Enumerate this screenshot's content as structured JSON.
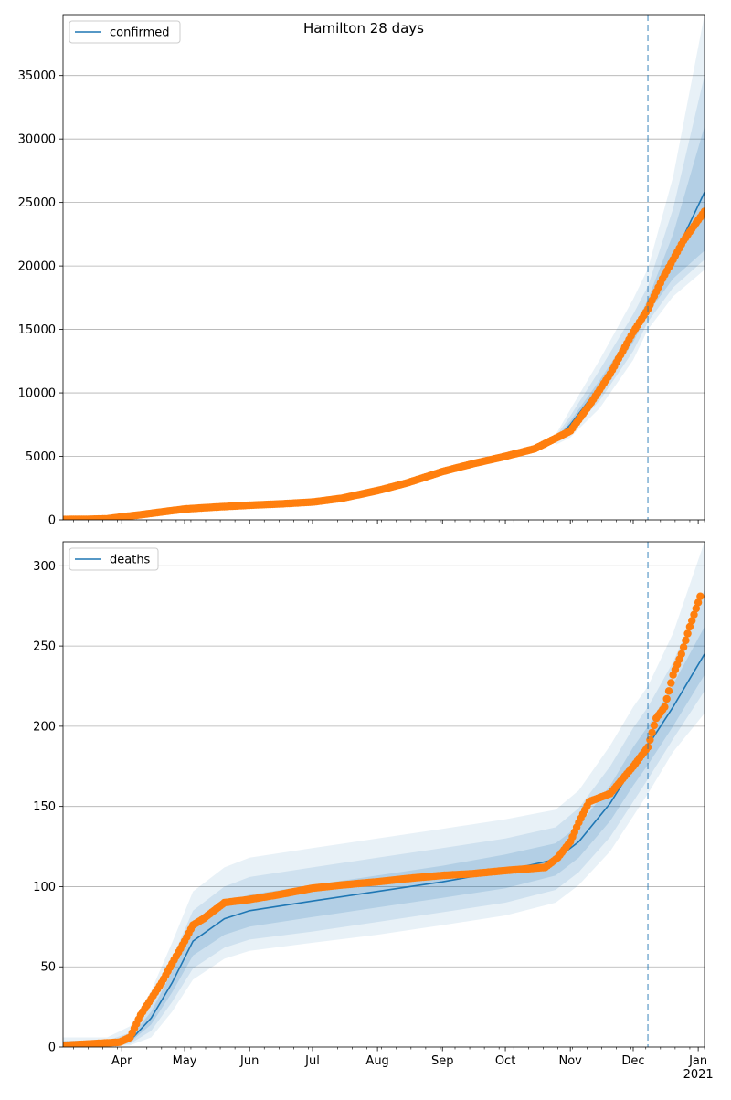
{
  "title": "Hamilton 28 days",
  "chart_data": [
    {
      "type": "line",
      "name": "confirmed",
      "legend": "confirmed",
      "legend_position": "top-left",
      "grid": "horizontal",
      "x_ticks": [
        "Apr",
        "May",
        "Jun",
        "Jul",
        "Aug",
        "Sep",
        "Oct",
        "Nov",
        "Dec",
        "Jan"
      ],
      "x_year_label": "2021",
      "y_ticks": [
        "0",
        "5000",
        "10000",
        "15000",
        "20000",
        "25000",
        "30000",
        "35000"
      ],
      "xlim": [
        "2020-03-04",
        "2021-01-04"
      ],
      "ylim": [
        0,
        39800
      ],
      "forecast_start": "2020-12-08",
      "model_line": {
        "x": [
          "2020-03-04",
          "2020-03-25",
          "2020-04-15",
          "2020-05-01",
          "2020-06-01",
          "2020-07-01",
          "2020-08-01",
          "2020-09-01",
          "2020-10-01",
          "2020-10-25",
          "2020-11-01",
          "2020-11-15",
          "2020-12-01",
          "2020-12-08",
          "2020-12-20",
          "2021-01-04"
        ],
        "y": [
          30,
          40,
          300,
          800,
          1200,
          1500,
          2400,
          4000,
          5100,
          6300,
          7500,
          10500,
          14500,
          16800,
          20600,
          25800
        ]
      },
      "bands": [
        {
          "x": [
            "2020-10-25",
            "2020-11-01",
            "2020-11-15",
            "2020-12-01",
            "2020-12-08",
            "2020-12-20",
            "2021-01-04"
          ],
          "lower": [
            6200,
            7200,
            10000,
            14000,
            16300,
            19000,
            21200
          ],
          "upper": [
            6400,
            7800,
            11000,
            15000,
            17400,
            22500,
            31000
          ]
        },
        {
          "x": [
            "2020-10-25",
            "2020-11-01",
            "2020-11-15",
            "2020-12-01",
            "2020-12-08",
            "2020-12-20",
            "2021-01-04"
          ],
          "lower": [
            6050,
            6900,
            9400,
            13300,
            15600,
            18300,
            20500
          ],
          "upper": [
            6550,
            8200,
            11800,
            16200,
            18400,
            24500,
            35000
          ]
        },
        {
          "x": [
            "2020-10-25",
            "2020-11-01",
            "2020-11-15",
            "2020-12-01",
            "2020-12-08",
            "2020-12-20",
            "2021-01-04"
          ],
          "lower": [
            5900,
            6500,
            8800,
            12600,
            15000,
            17600,
            19700
          ],
          "upper": [
            6700,
            8700,
            12600,
            17400,
            19800,
            27000,
            39800
          ]
        }
      ],
      "observed": {
        "x": [
          "2020-03-04",
          "2020-03-15",
          "2020-03-25",
          "2020-04-01",
          "2020-04-10",
          "2020-04-20",
          "2020-05-01",
          "2020-05-15",
          "2020-06-01",
          "2020-06-15",
          "2020-07-01",
          "2020-07-15",
          "2020-08-01",
          "2020-08-15",
          "2020-09-01",
          "2020-09-15",
          "2020-10-01",
          "2020-10-15",
          "2020-11-01",
          "2020-11-10",
          "2020-11-20",
          "2020-12-01",
          "2020-12-08",
          "2020-12-15",
          "2020-12-25",
          "2021-01-04"
        ],
        "y": [
          30,
          40,
          80,
          230,
          400,
          620,
          850,
          1000,
          1150,
          1250,
          1400,
          1700,
          2300,
          2900,
          3800,
          4400,
          5000,
          5600,
          7000,
          9000,
          11500,
          14800,
          16600,
          19000,
          22000,
          24300
        ]
      }
    },
    {
      "type": "line",
      "name": "deaths",
      "legend": "deaths",
      "legend_position": "top-left",
      "grid": "horizontal",
      "x_ticks": [
        "Apr",
        "May",
        "Jun",
        "Jul",
        "Aug",
        "Sep",
        "Oct",
        "Nov",
        "Dec",
        "Jan"
      ],
      "x_year_label": "2021",
      "y_ticks": [
        "0",
        "50",
        "100",
        "150",
        "200",
        "250",
        "300"
      ],
      "xlim": [
        "2020-03-04",
        "2021-01-04"
      ],
      "ylim": [
        0,
        315
      ],
      "forecast_start": "2020-12-08",
      "model_line": {
        "x": [
          "2020-03-04",
          "2020-03-25",
          "2020-04-05",
          "2020-04-15",
          "2020-04-25",
          "2020-05-05",
          "2020-05-20",
          "2020-06-01",
          "2020-07-01",
          "2020-08-01",
          "2020-09-01",
          "2020-10-01",
          "2020-10-25",
          "2020-11-05",
          "2020-11-20",
          "2020-12-01",
          "2020-12-08",
          "2020-12-20",
          "2021-01-04"
        ],
        "y": [
          1,
          1,
          4,
          18,
          40,
          66,
          80,
          85,
          91,
          97,
          103,
          110,
          117,
          128,
          152,
          175,
          188,
          212,
          245
        ]
      },
      "bands": [
        {
          "x": [
            "2020-03-04",
            "2020-03-25",
            "2020-04-05",
            "2020-04-15",
            "2020-04-25",
            "2020-05-05",
            "2020-05-20",
            "2020-06-01",
            "2020-07-01",
            "2020-08-01",
            "2020-09-01",
            "2020-10-01",
            "2020-10-25",
            "2020-11-05",
            "2020-11-20",
            "2020-12-01",
            "2020-12-08",
            "2020-12-20",
            "2021-01-04"
          ],
          "lower": [
            0,
            0,
            3,
            14,
            34,
            57,
            70,
            75,
            81,
            87,
            93,
            99,
            107,
            118,
            141,
            163,
            176,
            200,
            232
          ],
          "upper": [
            2,
            2,
            6,
            22,
            47,
            75,
            90,
            95,
            101,
            107,
            113,
            120,
            127,
            138,
            163,
            187,
            200,
            226,
            262
          ]
        },
        {
          "x": [
            "2020-03-04",
            "2020-03-25",
            "2020-04-05",
            "2020-04-15",
            "2020-04-25",
            "2020-05-05",
            "2020-05-20",
            "2020-06-01",
            "2020-07-01",
            "2020-08-01",
            "2020-09-01",
            "2020-10-01",
            "2020-10-25",
            "2020-11-05",
            "2020-11-20",
            "2020-12-01",
            "2020-12-08",
            "2020-12-20",
            "2021-01-04"
          ],
          "lower": [
            0,
            0,
            2,
            10,
            28,
            49,
            62,
            67,
            72,
            78,
            84,
            90,
            98,
            109,
            131,
            153,
            167,
            192,
            222
          ],
          "upper": [
            4,
            4,
            9,
            28,
            55,
            85,
            100,
            106,
            112,
            118,
            124,
            130,
            137,
            149,
            175,
            199,
            212,
            240,
            285
          ]
        },
        {
          "x": [
            "2020-03-04",
            "2020-03-25",
            "2020-04-05",
            "2020-04-15",
            "2020-04-25",
            "2020-05-05",
            "2020-05-20",
            "2020-06-01",
            "2020-07-01",
            "2020-08-01",
            "2020-09-01",
            "2020-10-01",
            "2020-10-25",
            "2020-11-05",
            "2020-11-20",
            "2020-12-01",
            "2020-12-08",
            "2020-12-20",
            "2021-01-04"
          ],
          "lower": [
            0,
            0,
            1,
            6,
            22,
            42,
            55,
            60,
            65,
            70,
            76,
            82,
            90,
            101,
            122,
            144,
            158,
            184,
            208
          ],
          "upper": [
            6,
            6,
            13,
            35,
            65,
            97,
            112,
            118,
            124,
            130,
            136,
            142,
            148,
            160,
            188,
            212,
            225,
            258,
            315
          ]
        }
      ],
      "observed": {
        "x": [
          "2020-03-04",
          "2020-03-31",
          "2020-04-05",
          "2020-04-10",
          "2020-04-15",
          "2020-04-20",
          "2020-04-25",
          "2020-05-01",
          "2020-05-05",
          "2020-05-10",
          "2020-05-20",
          "2020-06-01",
          "2020-06-15",
          "2020-07-01",
          "2020-07-15",
          "2020-08-01",
          "2020-08-15",
          "2020-09-01",
          "2020-09-15",
          "2020-10-01",
          "2020-10-20",
          "2020-10-26",
          "2020-11-01",
          "2020-11-05",
          "2020-11-10",
          "2020-11-20",
          "2020-12-01",
          "2020-12-08",
          "2020-12-12",
          "2020-12-16",
          "2020-12-20",
          "2020-12-24",
          "2020-12-28",
          "2021-01-02"
        ],
        "y": [
          1,
          3,
          6,
          20,
          30,
          40,
          52,
          66,
          76,
          80,
          90,
          92,
          95,
          99,
          101,
          103,
          105,
          107,
          108,
          110,
          112,
          118,
          128,
          140,
          153,
          158,
          175,
          187,
          205,
          212,
          232,
          245,
          262,
          281
        ]
      }
    }
  ]
}
